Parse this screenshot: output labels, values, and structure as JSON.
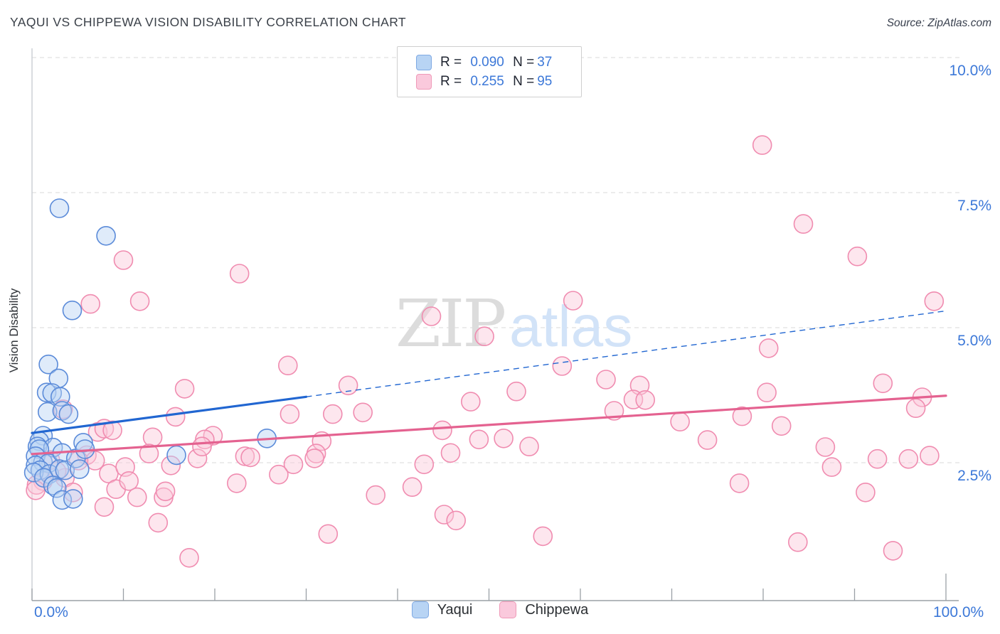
{
  "header": {
    "title": "YAQUI VS CHIPPEWA VISION DISABILITY CORRELATION CHART",
    "source": "Source: ZipAtlas.com"
  },
  "watermark": {
    "zip": "ZIP",
    "atlas": "atlas"
  },
  "legend_box": {
    "r_label": "R =",
    "n_label": "N =",
    "rows": [
      {
        "series": "Yaqui",
        "r": "0.090",
        "n": "37"
      },
      {
        "series": "Chippewa",
        "r": "0.255",
        "n": "95"
      }
    ]
  },
  "bottom_legend": {
    "items": [
      {
        "label": "Yaqui"
      },
      {
        "label": "Chippewa"
      }
    ]
  },
  "colors": {
    "yaqui_fill": "#b8d3f3",
    "yaqui_stroke": "#5b8bd9",
    "chippewa_fill": "#fbc7d9",
    "chippewa_stroke": "#f08cb0",
    "yaqui_trend": "#2166d1",
    "chippewa_trend": "#e46290",
    "axis_text": "#3c78d8",
    "grid": "#d9d9d9",
    "axis_line": "#9aa0a6",
    "watermark_zip": "#dcdcdc",
    "watermark_atlas": "#d2e3f8"
  },
  "chart_data": {
    "type": "scatter",
    "title": "YAQUI VS CHIPPEWA VISION DISABILITY CORRELATION CHART",
    "xlabel": "",
    "ylabel": "Vision Disability",
    "xlim": [
      0,
      100
    ],
    "ylim": [
      0,
      10.5
    ],
    "x_axis_labels": {
      "min": "0.0%",
      "max": "100.0%"
    },
    "x_tick_values": [
      0,
      10,
      20,
      30,
      40,
      50,
      60,
      70,
      80,
      90,
      100
    ],
    "y_ticks": [
      {
        "value": 10.0,
        "label": "10.0%"
      },
      {
        "value": 7.5,
        "label": "7.5%"
      },
      {
        "value": 5.0,
        "label": "5.0%"
      },
      {
        "value": 2.5,
        "label": "2.5%"
      }
    ],
    "grid": true,
    "legend_position": "bottom",
    "point_radius": 13,
    "series": [
      {
        "name": "Yaqui",
        "r": 0.09,
        "n": 37,
        "points": [
          [
            3.0,
            7.21
          ],
          [
            8.1,
            6.7
          ],
          [
            4.4,
            5.32
          ],
          [
            1.8,
            4.32
          ],
          [
            2.9,
            4.06
          ],
          [
            1.6,
            3.8
          ],
          [
            2.2,
            3.79
          ],
          [
            3.1,
            3.72
          ],
          [
            1.7,
            3.44
          ],
          [
            3.3,
            3.46
          ],
          [
            4.0,
            3.4
          ],
          [
            1.2,
            3.0
          ],
          [
            0.8,
            2.9
          ],
          [
            0.6,
            2.8
          ],
          [
            2.3,
            2.78
          ],
          [
            0.8,
            2.75
          ],
          [
            0.4,
            2.62
          ],
          [
            1.2,
            2.51
          ],
          [
            1.8,
            2.49
          ],
          [
            0.4,
            2.45
          ],
          [
            0.9,
            2.36
          ],
          [
            0.2,
            2.32
          ],
          [
            1.9,
            2.29
          ],
          [
            1.3,
            2.22
          ],
          [
            3.3,
            2.68
          ],
          [
            3.0,
            2.38
          ],
          [
            3.6,
            2.36
          ],
          [
            4.8,
            2.58
          ],
          [
            5.6,
            2.87
          ],
          [
            5.8,
            2.75
          ],
          [
            2.3,
            2.08
          ],
          [
            2.7,
            2.03
          ],
          [
            3.3,
            1.81
          ],
          [
            4.5,
            1.83
          ],
          [
            5.2,
            2.38
          ],
          [
            15.8,
            2.64
          ],
          [
            25.7,
            2.95
          ]
        ]
      },
      {
        "name": "Chippewa",
        "r": 0.255,
        "n": 95,
        "points": [
          [
            10.0,
            6.25
          ],
          [
            6.4,
            5.44
          ],
          [
            11.8,
            5.49
          ],
          [
            22.7,
            6.0
          ],
          [
            43.7,
            5.21
          ],
          [
            49.5,
            4.84
          ],
          [
            59.2,
            5.5
          ],
          [
            79.9,
            8.38
          ],
          [
            84.4,
            6.92
          ],
          [
            90.3,
            6.32
          ],
          [
            98.7,
            5.49
          ],
          [
            80.6,
            4.62
          ],
          [
            58.0,
            4.29
          ],
          [
            62.8,
            4.04
          ],
          [
            66.5,
            3.93
          ],
          [
            65.8,
            3.67
          ],
          [
            67.1,
            3.66
          ],
          [
            53.0,
            3.82
          ],
          [
            63.7,
            3.46
          ],
          [
            70.9,
            3.26
          ],
          [
            51.6,
            2.95
          ],
          [
            54.4,
            2.8
          ],
          [
            73.9,
            2.92
          ],
          [
            77.7,
            3.36
          ],
          [
            82.0,
            3.18
          ],
          [
            80.4,
            3.8
          ],
          [
            77.4,
            2.12
          ],
          [
            55.9,
            1.14
          ],
          [
            83.8,
            1.03
          ],
          [
            28.0,
            4.3
          ],
          [
            34.6,
            3.93
          ],
          [
            32.9,
            3.4
          ],
          [
            36.2,
            3.43
          ],
          [
            28.2,
            3.4
          ],
          [
            19.8,
            3.0
          ],
          [
            31.7,
            2.9
          ],
          [
            23.3,
            2.62
          ],
          [
            23.9,
            2.6
          ],
          [
            31.1,
            2.67
          ],
          [
            30.9,
            2.58
          ],
          [
            28.6,
            2.47
          ],
          [
            44.9,
            3.1
          ],
          [
            42.9,
            2.47
          ],
          [
            45.8,
            2.68
          ],
          [
            48.9,
            2.93
          ],
          [
            48.0,
            3.63
          ],
          [
            27.0,
            2.28
          ],
          [
            22.4,
            2.12
          ],
          [
            41.6,
            2.05
          ],
          [
            37.6,
            1.9
          ],
          [
            45.1,
            1.54
          ],
          [
            46.4,
            1.43
          ],
          [
            32.4,
            1.18
          ],
          [
            17.2,
            0.74
          ],
          [
            93.1,
            3.97
          ],
          [
            97.4,
            3.71
          ],
          [
            96.7,
            3.51
          ],
          [
            86.8,
            2.79
          ],
          [
            87.5,
            2.42
          ],
          [
            92.5,
            2.57
          ],
          [
            95.9,
            2.57
          ],
          [
            98.2,
            2.63
          ],
          [
            91.2,
            1.95
          ],
          [
            94.2,
            0.87
          ],
          [
            7.2,
            3.07
          ],
          [
            7.9,
            3.13
          ],
          [
            1.2,
            2.16
          ],
          [
            0.5,
            2.09
          ],
          [
            3.6,
            2.22
          ],
          [
            6.0,
            2.64
          ],
          [
            6.9,
            2.54
          ],
          [
            8.4,
            2.3
          ],
          [
            10.2,
            2.42
          ],
          [
            9.2,
            2.01
          ],
          [
            0.4,
            1.99
          ],
          [
            7.9,
            1.68
          ],
          [
            16.7,
            3.87
          ],
          [
            15.7,
            3.35
          ],
          [
            13.2,
            2.97
          ],
          [
            12.8,
            2.67
          ],
          [
            5.1,
            2.54
          ],
          [
            2.7,
            2.34
          ],
          [
            3.4,
            3.49
          ],
          [
            18.1,
            2.58
          ],
          [
            18.9,
            2.93
          ],
          [
            18.6,
            2.8
          ],
          [
            14.4,
            1.86
          ],
          [
            14.6,
            1.97
          ],
          [
            13.8,
            1.39
          ],
          [
            15.2,
            2.45
          ],
          [
            8.8,
            3.1
          ],
          [
            10.6,
            2.16
          ],
          [
            11.5,
            1.86
          ],
          [
            2.0,
            2.55
          ],
          [
            4.5,
            1.95
          ]
        ]
      }
    ],
    "trend_lines": [
      {
        "series": "Yaqui",
        "solid": [
          [
            0,
            3.05
          ],
          [
            30,
            3.72
          ]
        ],
        "dashed": [
          [
            30,
            3.72
          ],
          [
            100,
            5.31
          ]
        ]
      },
      {
        "series": "Chippewa",
        "solid": [
          [
            0,
            2.66
          ],
          [
            100,
            3.74
          ]
        ],
        "dashed": null
      }
    ]
  }
}
